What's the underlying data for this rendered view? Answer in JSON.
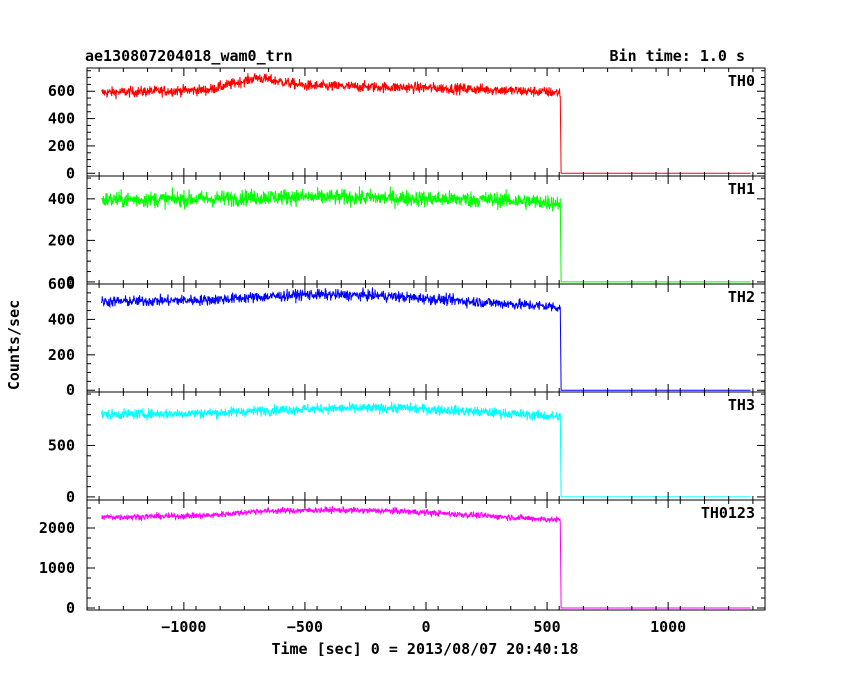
{
  "chart_data": {
    "type": "line",
    "title": "ae130807204018_wam0_trn",
    "subtitle": "Bin time: 1.0 s",
    "xlabel": "Time [sec] 0 = 2013/08/07 20:40:18",
    "ylabel": "Counts/sec",
    "xlim": [
      -1400,
      1400
    ],
    "x_ticks": [
      -1000,
      -500,
      0,
      500,
      1000
    ],
    "data_x_range": [
      -1340,
      1340
    ],
    "drop_x": 555,
    "panels": [
      {
        "name": "TH0",
        "color": "#ff0000",
        "ylim": [
          -20,
          770
        ],
        "y_ticks": [
          0,
          200,
          400,
          600
        ],
        "profile_x": [
          -1340,
          -900,
          -740,
          -700,
          -500,
          0,
          300,
          550
        ],
        "profile_y": [
          590,
          610,
          680,
          700,
          640,
          625,
          610,
          590
        ],
        "noise": 28,
        "after_drop": 0
      },
      {
        "name": "TH1",
        "color": "#00ff00",
        "ylim": [
          -10,
          510
        ],
        "y_ticks": [
          0,
          200,
          400
        ],
        "profile_x": [
          -1340,
          -900,
          -600,
          -200,
          300,
          550
        ],
        "profile_y": [
          395,
          400,
          410,
          405,
          395,
          380
        ],
        "noise": 28,
        "after_drop": 0
      },
      {
        "name": "TH2",
        "color": "#0000ff",
        "ylim": [
          -10,
          600
        ],
        "y_ticks": [
          0,
          200,
          400,
          600
        ],
        "profile_x": [
          -1340,
          -900,
          -500,
          -200,
          200,
          550
        ],
        "profile_y": [
          500,
          510,
          540,
          535,
          500,
          470
        ],
        "noise": 22,
        "after_drop": 0
      },
      {
        "name": "TH3",
        "color": "#00ffff",
        "ylim": [
          -30,
          1020
        ],
        "y_ticks": [
          0,
          500
        ],
        "profile_x": [
          -1340,
          -900,
          -500,
          -100,
          200,
          550
        ],
        "profile_y": [
          800,
          815,
          855,
          865,
          830,
          780
        ],
        "noise": 35,
        "after_drop": 0
      },
      {
        "name": "TH0123",
        "color": "#ff00ff",
        "ylim": [
          -50,
          2700
        ],
        "y_ticks": [
          0,
          1000,
          2000
        ],
        "profile_x": [
          -1340,
          -900,
          -700,
          -400,
          -100,
          200,
          550
        ],
        "profile_y": [
          2270,
          2310,
          2420,
          2450,
          2420,
          2320,
          2200
        ],
        "noise": 55,
        "after_drop": 0
      }
    ]
  }
}
